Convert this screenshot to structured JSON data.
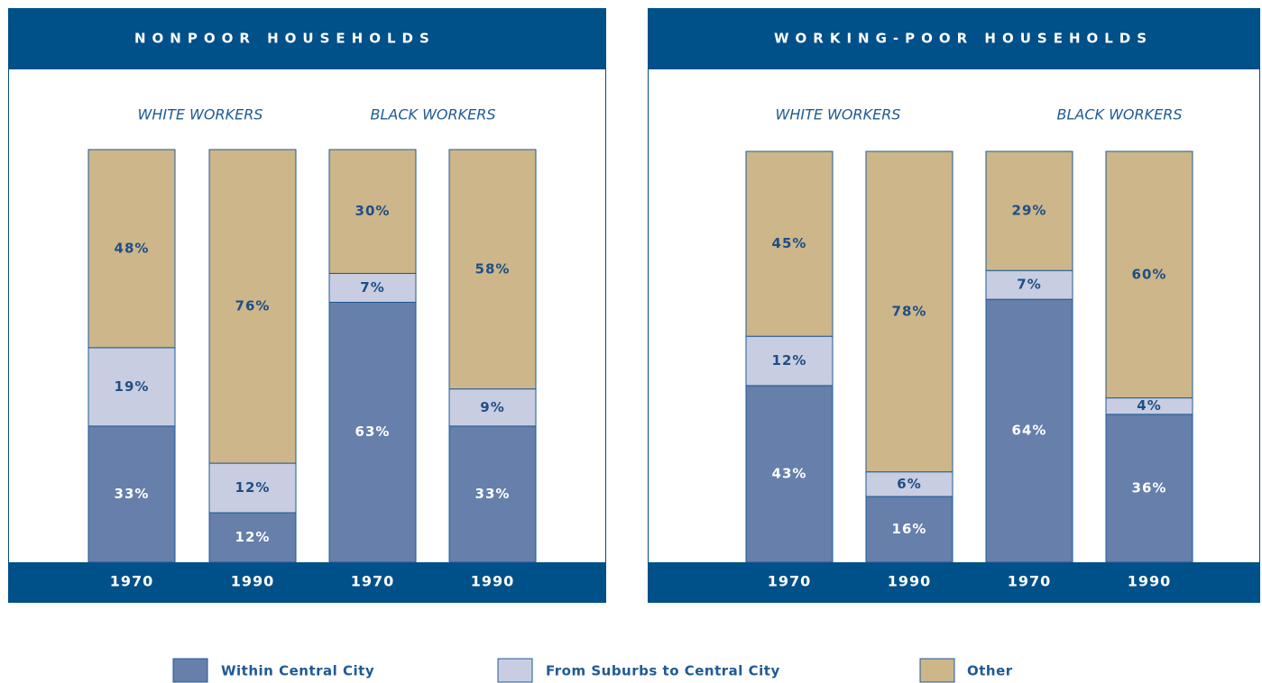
{
  "legend": [
    {
      "name": "Within Central City",
      "color": "#667fab"
    },
    {
      "name": "From Suburbs to Central City",
      "color": "#c8cde2"
    },
    {
      "name": "Other",
      "color": "#cdb68a"
    }
  ],
  "chart_data": [
    {
      "type": "stacked-bar",
      "title": "NONPOOR HOUSEHOLDS",
      "groups": [
        "WHITE WORKERS",
        "BLACK WORKERS"
      ],
      "categories": [
        "1970",
        "1990",
        "1970",
        "1990"
      ],
      "series": [
        {
          "values": [
            33,
            12,
            63,
            33
          ],
          "value_labels": [
            "33%",
            "12%",
            "63%",
            "33%"
          ]
        },
        {
          "values": [
            19,
            12,
            7,
            9
          ],
          "value_labels": [
            "19%",
            "12%",
            "7%",
            "9%"
          ]
        },
        {
          "values": [
            48,
            76,
            30,
            58
          ],
          "value_labels": [
            "48%",
            "76%",
            "30%",
            "58%"
          ]
        }
      ]
    },
    {
      "type": "stacked-bar",
      "title": "WORKING-POOR HOUSEHOLDS",
      "groups": [
        "WHITE WORKERS",
        "BLACK WORKERS"
      ],
      "categories": [
        "1970",
        "1990",
        "1970",
        "1990"
      ],
      "series": [
        {
          "values": [
            43,
            16,
            64,
            36
          ],
          "value_labels": [
            "43%",
            "16%",
            "64%",
            "36%"
          ]
        },
        {
          "values": [
            12,
            6,
            7,
            4
          ],
          "value_labels": [
            "12%",
            "6%",
            "7%",
            "4%"
          ]
        },
        {
          "values": [
            45,
            78,
            29,
            60
          ],
          "value_labels": [
            "45%",
            "78%",
            "29%",
            "60%"
          ]
        }
      ]
    }
  ]
}
